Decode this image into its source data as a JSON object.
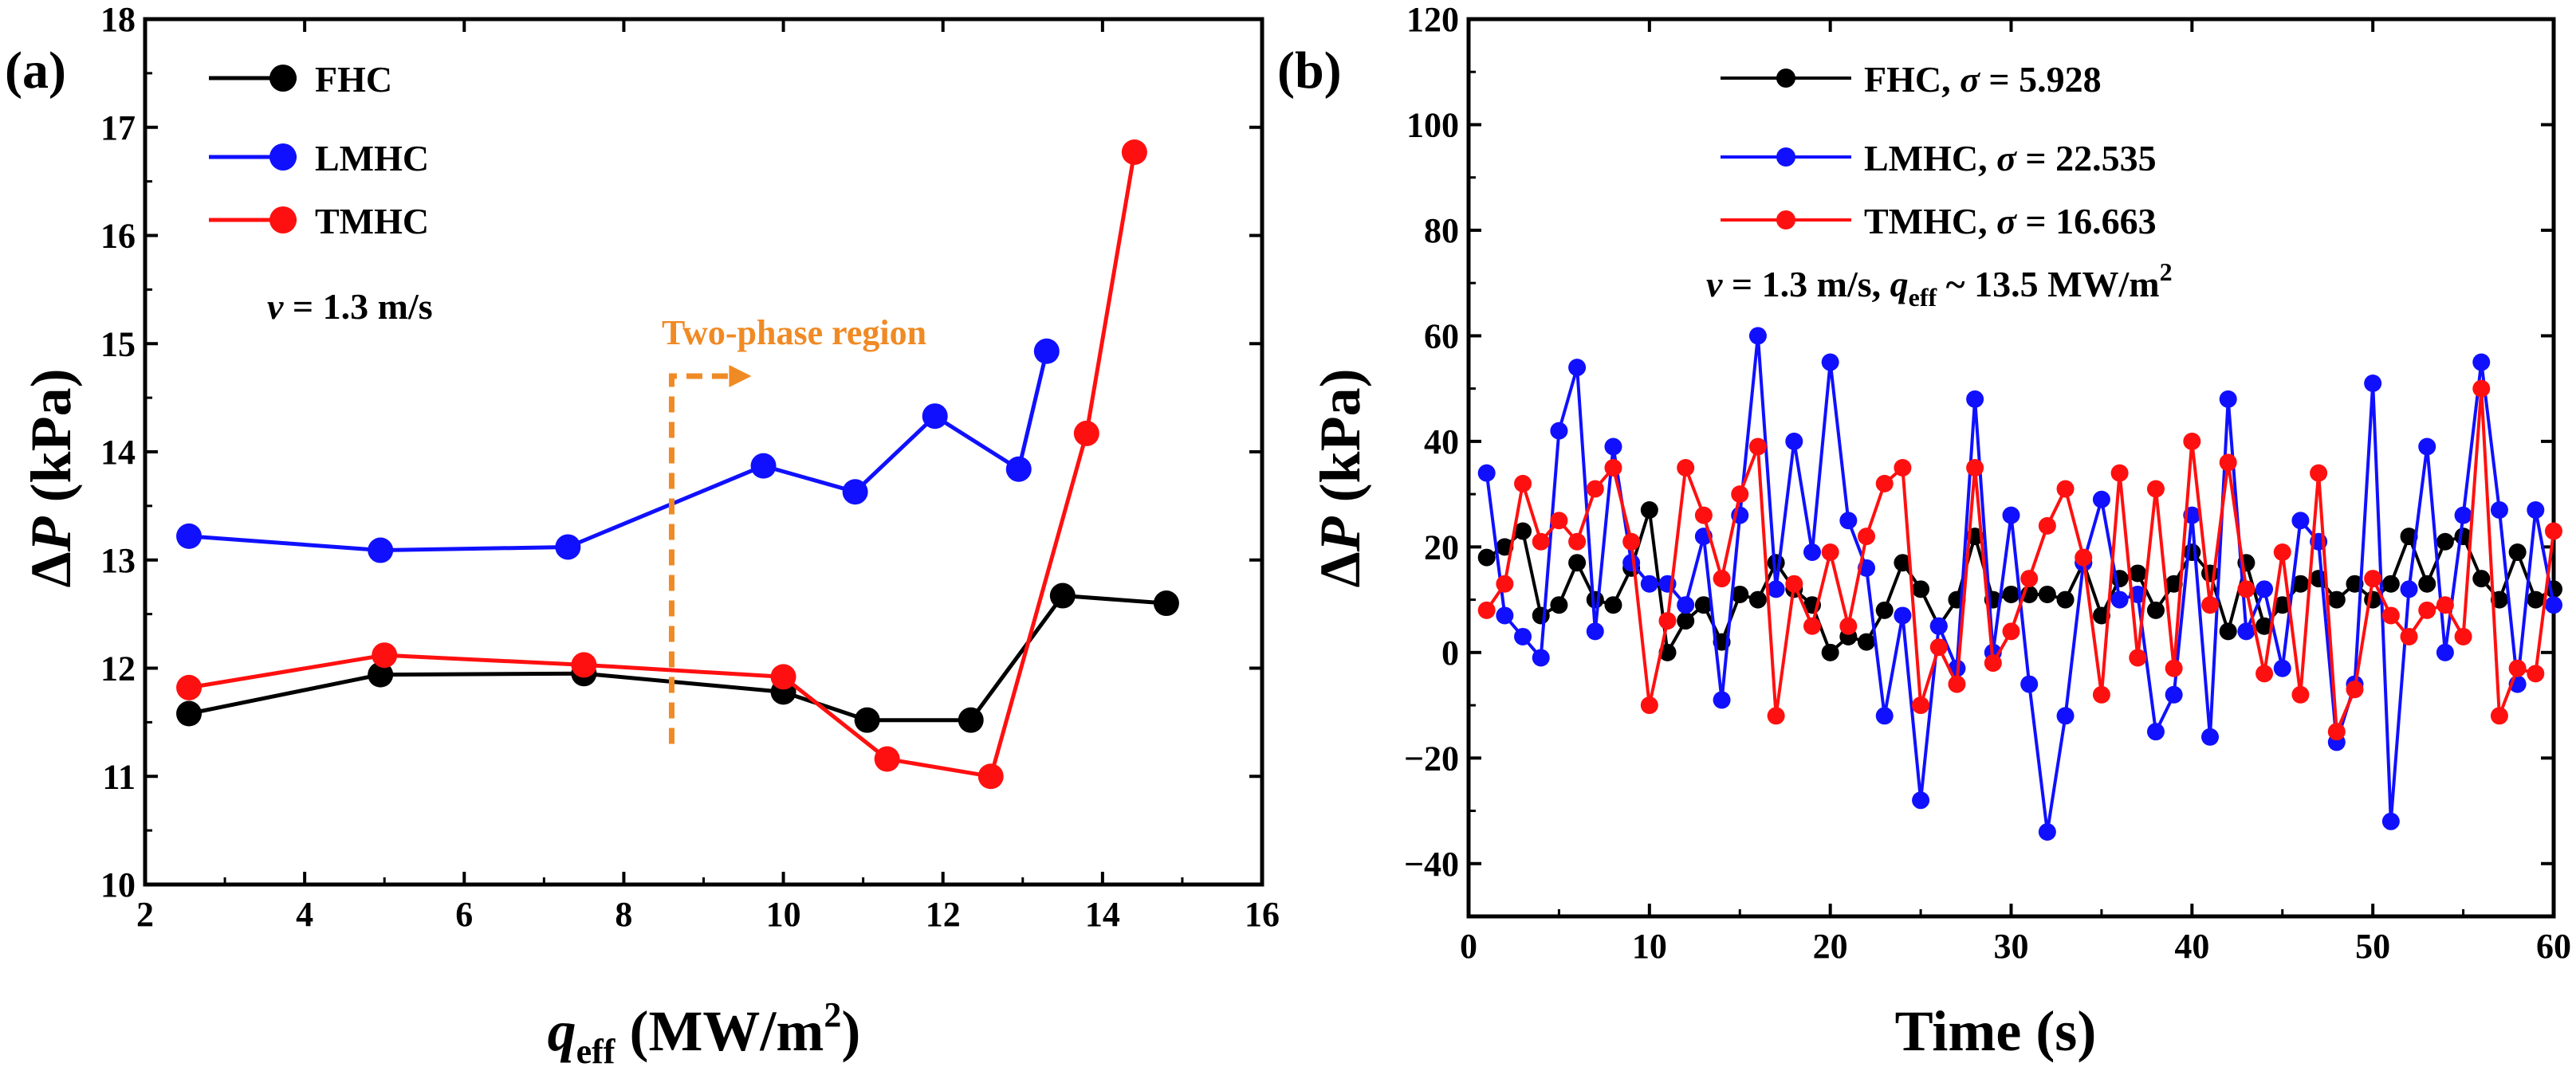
{
  "chart_data": [
    {
      "panel_label": "(a)",
      "type": "line",
      "xlabel_main": "q",
      "xlabel_sub": "eff",
      "xlabel_unit": " (MW/m",
      "xlabel_sup": "2",
      "xlabel_close": ")",
      "ylabel_prefix": "Δ",
      "ylabel_var": "P",
      "ylabel_unit": " (kPa)",
      "xlim": [
        2,
        16
      ],
      "ylim": [
        10,
        18
      ],
      "xticks": [
        "2",
        "4",
        "6",
        "8",
        "10",
        "12",
        "14",
        "16"
      ],
      "yticks": [
        "10",
        "11",
        "12",
        "13",
        "14",
        "15",
        "16",
        "17",
        "18"
      ],
      "series": [
        {
          "name": "FHC",
          "color": "#000000",
          "x": [
            2.55,
            4.95,
            7.5,
            10.0,
            11.05,
            12.35,
            13.5,
            14.8
          ],
          "y": [
            11.58,
            11.94,
            11.95,
            11.78,
            11.52,
            11.52,
            12.67,
            12.6
          ]
        },
        {
          "name": "LMHC",
          "color": "#1010ff",
          "x": [
            2.55,
            4.95,
            7.3,
            9.75,
            10.9,
            11.9,
            12.95,
            13.3
          ],
          "y": [
            13.22,
            13.09,
            13.12,
            13.87,
            13.63,
            14.33,
            13.84,
            14.93
          ]
        },
        {
          "name": "TMHC",
          "color": "#ff1010",
          "x": [
            2.55,
            5.0,
            7.5,
            10.0,
            11.3,
            12.6,
            13.8,
            14.4
          ],
          "y": [
            11.82,
            12.12,
            12.03,
            11.92,
            11.16,
            11.0,
            14.17,
            16.77
          ]
        }
      ],
      "annotation_condition": "v = 1.3 m/s",
      "condition_var": "v",
      "condition_rest": " = 1.3 m/s",
      "annotation_region": "Two-phase region",
      "region_color": "#f08a24",
      "region_boundary_x": 8.6,
      "legend_loc": "top-left"
    },
    {
      "panel_label": "(b)",
      "type": "line",
      "xlabel": "Time (s)",
      "ylabel_prefix": "Δ",
      "ylabel_var": "P",
      "ylabel_unit": " (kPa)",
      "xlim": [
        0,
        60
      ],
      "ylim": [
        -50,
        120
      ],
      "xticks": [
        "0",
        "10",
        "20",
        "30",
        "40",
        "50",
        "60"
      ],
      "yticks": [
        "−40",
        "−20",
        "0",
        "20",
        "40",
        "60",
        "80",
        "100",
        "120"
      ],
      "x": [
        1,
        2,
        3,
        4,
        5,
        6,
        7,
        8,
        9,
        10,
        11,
        12,
        13,
        14,
        15,
        16,
        17,
        18,
        19,
        20,
        21,
        22,
        23,
        24,
        25,
        26,
        27,
        28,
        29,
        30,
        31,
        32,
        33,
        34,
        35,
        36,
        37,
        38,
        39,
        40,
        41,
        42,
        43,
        44,
        45,
        46,
        47,
        48,
        49,
        50,
        51,
        52,
        53,
        54,
        55,
        56,
        57,
        58,
        59,
        60
      ],
      "series": [
        {
          "name": "FHC",
          "sigma_label": "FHC, σ = 5.928",
          "name_text": "FHC, ",
          "sigma_text": " = 5.928",
          "color": "#000000",
          "y": [
            18,
            20,
            23,
            7,
            9,
            17,
            10,
            9,
            16,
            27,
            0,
            6,
            9,
            2,
            11,
            10,
            17,
            12,
            9,
            0,
            3,
            2,
            8,
            17,
            12,
            5,
            10,
            22,
            10,
            11,
            11,
            11,
            10,
            17,
            7,
            14,
            15,
            8,
            13,
            19,
            15,
            4,
            17,
            5,
            9,
            13,
            14,
            10,
            13,
            10,
            13,
            22,
            13,
            21,
            22,
            14,
            10,
            19,
            10,
            12
          ]
        },
        {
          "name": "LMHC",
          "sigma_label": "LMHC, σ = 22.535",
          "name_text": "LMHC, ",
          "sigma_text": " = 22.535",
          "color": "#1010ff",
          "y": [
            34,
            7,
            3,
            -1,
            42,
            54,
            4,
            39,
            17,
            13,
            13,
            9,
            22,
            -9,
            26,
            60,
            12,
            40,
            19,
            55,
            25,
            16,
            -12,
            7,
            -28,
            5,
            -3,
            48,
            0,
            26,
            -6,
            -34,
            -12,
            17,
            29,
            10,
            11,
            -15,
            -8,
            26,
            -16,
            48,
            4,
            12,
            -3,
            25,
            21,
            -17,
            -6,
            51,
            -32,
            12,
            39,
            0,
            26,
            55,
            27,
            -6,
            27,
            9
          ]
        },
        {
          "name": "TMHC",
          "sigma_label": "TMHC, σ = 16.663",
          "name_text": "TMHC, ",
          "sigma_text": " = 16.663",
          "color": "#ff1010",
          "y": [
            8,
            13,
            32,
            21,
            25,
            21,
            31,
            35,
            21,
            -10,
            6,
            35,
            26,
            14,
            30,
            39,
            -12,
            13,
            5,
            19,
            5,
            22,
            32,
            35,
            -10,
            1,
            -6,
            35,
            -2,
            4,
            14,
            24,
            31,
            18,
            -8,
            34,
            -1,
            31,
            -3,
            40,
            9,
            36,
            12,
            -4,
            19,
            -8,
            34,
            -15,
            -7,
            14,
            7,
            3,
            8,
            9,
            3,
            50,
            -12,
            -3,
            -4,
            23
          ]
        }
      ],
      "annotation_condition": "v = 1.3 m/s, q_eff ~ 13.5 MW/m^2",
      "condition_var": "v",
      "condition_mid": " = 1.3 m/s, ",
      "condition_q": "q",
      "condition_q_sub": "eff",
      "condition_tail": " ~ 13.5 MW/m",
      "condition_sup": "2",
      "sigma_symbol": "σ",
      "legend_loc": "top-center"
    }
  ]
}
